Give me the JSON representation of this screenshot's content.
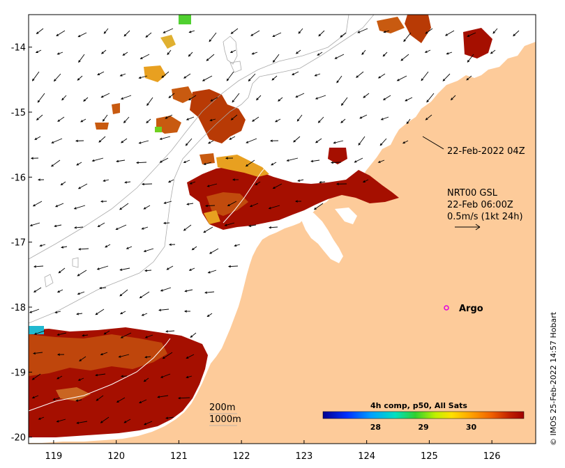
{
  "map": {
    "x_ticks": [
      "119",
      "120",
      "121",
      "122",
      "123",
      "124",
      "125",
      "126"
    ],
    "y_ticks": [
      "-14",
      "-15",
      "-16",
      "-17",
      "-18",
      "-19",
      "-20"
    ],
    "lon_range": [
      118.6,
      126.7
    ],
    "lat_range": [
      -20.1,
      -13.5
    ],
    "land_color": "#fdcb9a",
    "sst_warm_color": "#a50f00",
    "sst_mid_color": "#c85a10"
  },
  "annotations": {
    "timestamp": "22-Feb-2022 04Z",
    "current_source": "NRT00 GSL",
    "current_time": "22-Feb 06:00Z",
    "scale_label": "0.5m/s (1kt 24h)",
    "argo_label": "Argo",
    "depth_200": "200m",
    "depth_1000": "1000m"
  },
  "colorbar": {
    "title": "4h comp, p50, All Sats",
    "ticks": [
      "28",
      "29",
      "30"
    ],
    "tick_values": [
      28,
      29,
      30
    ],
    "range": [
      26.9,
      31.1
    ],
    "colors": [
      "#00008f",
      "#0030ff",
      "#00a0ff",
      "#00e0c0",
      "#30d030",
      "#c0f000",
      "#ffe000",
      "#ffa000",
      "#f06000",
      "#c02000",
      "#a00000"
    ]
  },
  "credit": "© IMOS 25-Feb-2022 14:57 Hobart",
  "argo_float": {
    "lon": 125.3,
    "lat": -18.0
  }
}
